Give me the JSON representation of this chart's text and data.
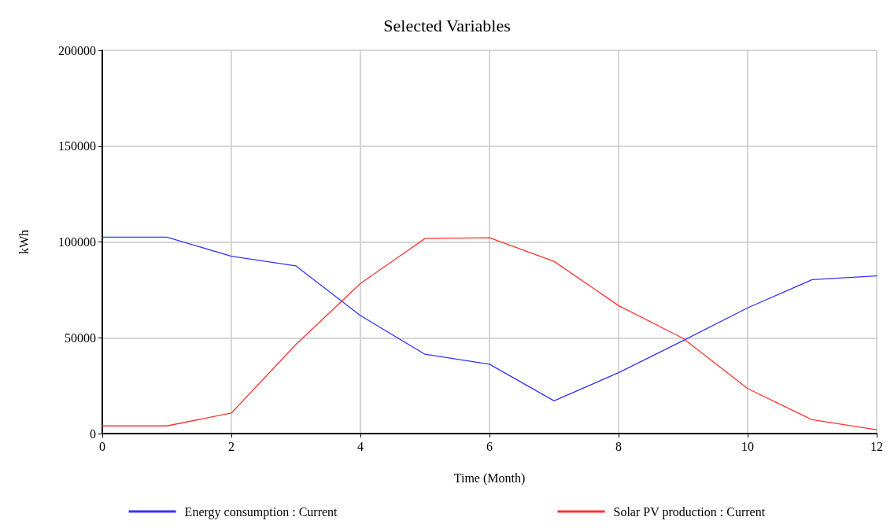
{
  "chart_data": {
    "type": "line",
    "title": "Selected Variables",
    "xlabel": "Time (Month)",
    "ylabel": "kWh",
    "x": [
      0,
      1,
      2,
      3,
      4,
      5,
      6,
      7,
      8,
      9,
      10,
      11,
      12
    ],
    "series": [
      {
        "name": "Energy consumption : Current",
        "color": "#3333ff",
        "values": [
          102500,
          102500,
          92600,
          87500,
          61600,
          41400,
          36200,
          17100,
          31800,
          48500,
          65600,
          80300,
          82300
        ]
      },
      {
        "name": "Solar PV production : Current",
        "color": "#ff3333",
        "values": [
          4000,
          4000,
          10700,
          46500,
          78300,
          101800,
          102200,
          89900,
          66800,
          49700,
          23500,
          7200,
          2000
        ]
      }
    ],
    "xlim": [
      0,
      12
    ],
    "xticks": [
      0,
      2,
      4,
      6,
      8,
      10,
      12
    ],
    "ylim": [
      0,
      200000
    ],
    "yticks": [
      0,
      50000,
      100000,
      150000,
      200000
    ],
    "grid": true,
    "legend": "bottom",
    "marker": "none",
    "line_style": "solid"
  }
}
